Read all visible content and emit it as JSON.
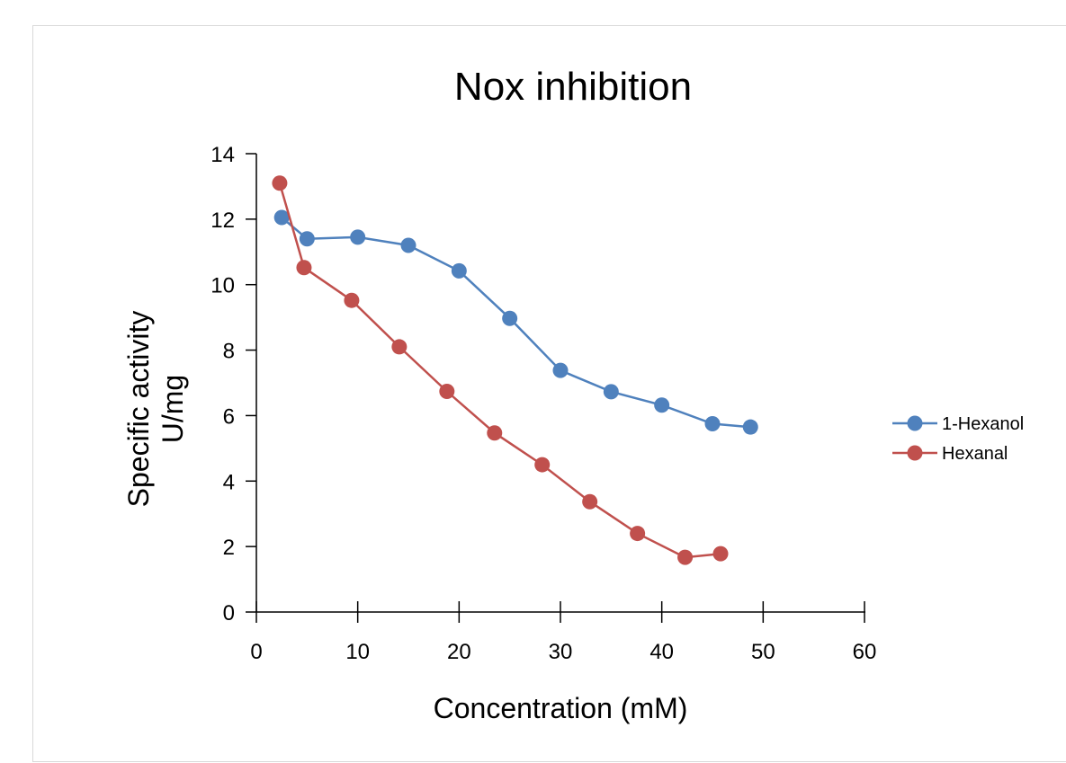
{
  "chart_data": {
    "type": "line",
    "title": "Nox inhibition",
    "xlabel": "Concentration (mM)",
    "ylabel": [
      "Specific activity",
      "U/mg"
    ],
    "xlim": [
      0,
      60
    ],
    "ylim": [
      0,
      14
    ],
    "xticks": [
      0,
      10,
      20,
      30,
      40,
      50,
      60
    ],
    "yticks": [
      0,
      2,
      4,
      6,
      8,
      10,
      12,
      14
    ],
    "grid": false,
    "legend_position": "right",
    "series": [
      {
        "name": "1-Hexanol",
        "color": "#4f81bd",
        "x": [
          2.5,
          5,
          10,
          15,
          20,
          25,
          30,
          35,
          40,
          45,
          48.75
        ],
        "y": [
          12.05,
          11.4,
          11.45,
          11.2,
          10.42,
          8.97,
          7.38,
          6.73,
          6.32,
          5.75,
          5.65
        ]
      },
      {
        "name": "Hexanal",
        "color": "#c0504d",
        "x": [
          2.3,
          4.7,
          9.4,
          14.1,
          18.8,
          23.5,
          28.2,
          32.9,
          37.6,
          42.3,
          45.8
        ],
        "y": [
          13.1,
          10.52,
          9.52,
          8.1,
          6.74,
          5.47,
          4.5,
          3.37,
          2.4,
          1.67,
          1.78
        ]
      }
    ]
  }
}
